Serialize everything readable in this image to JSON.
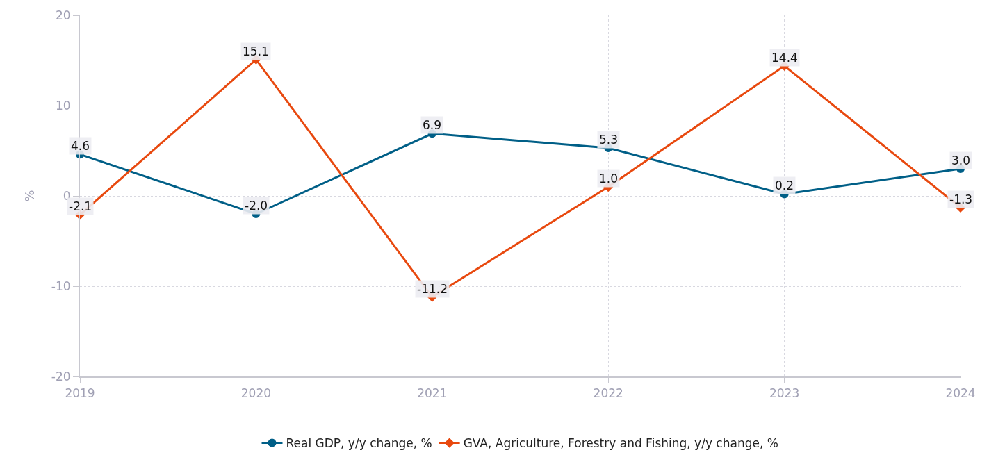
{
  "chart_data": {
    "type": "line",
    "ylabel": "%",
    "x": [
      2019,
      2020,
      2021,
      2022,
      2023,
      2024
    ],
    "series": [
      {
        "name": "Real GDP, y/y change, %",
        "color": "#005f87",
        "values": [
          4.6,
          -2.0,
          6.9,
          5.3,
          0.2,
          3.0
        ],
        "value_labels": [
          "4.6",
          "-2.0",
          "6.9",
          "5.3",
          "0.2",
          "3.0"
        ],
        "marker": "circle"
      },
      {
        "name": "GVA, Agriculture, Forestry and Fishing, y/y change, %",
        "color": "#e8490f",
        "values": [
          -2.1,
          15.1,
          -11.2,
          1.0,
          14.4,
          -1.3
        ],
        "value_labels": [
          "-2.1",
          "15.1",
          "-11.2",
          "1.0",
          "14.4",
          "-1.3"
        ],
        "marker": "diamond"
      }
    ],
    "xlim": [
      2019,
      2024
    ],
    "xticks": [
      2019,
      2020,
      2021,
      2022,
      2023,
      2024
    ],
    "ylim": [
      -20,
      20
    ],
    "yticks": [
      -20,
      -10,
      0,
      10,
      20
    ],
    "grid": true,
    "legend": "bottom",
    "line_style": "solid"
  }
}
